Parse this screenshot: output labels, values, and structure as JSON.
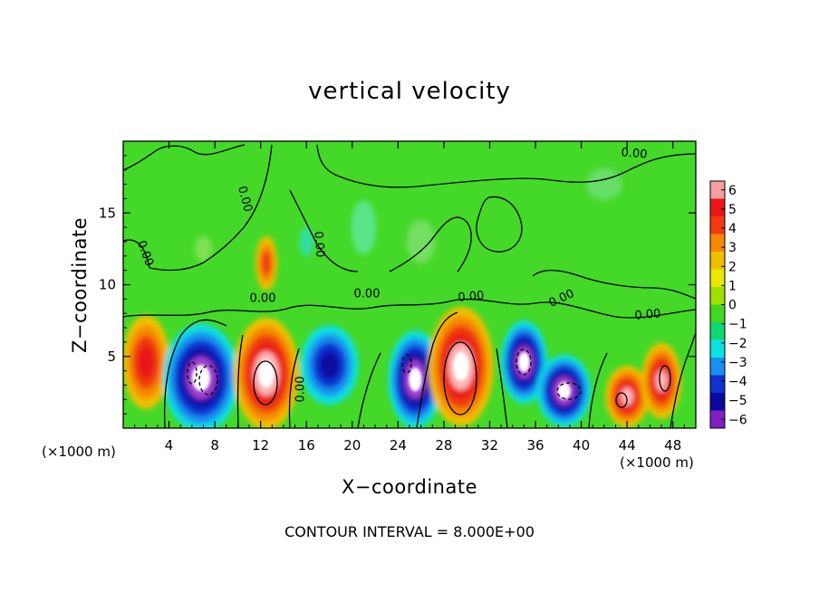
{
  "chart_data": {
    "type": "heatmap",
    "title": "vertical velocity",
    "xlabel": "X−coordinate",
    "ylabel": "Z−coordinate",
    "x_units_left": "(×1000 m)",
    "x_units_right": "(×1000 m)",
    "footer": "CONTOUR INTERVAL = 8.000E+00",
    "xlim": [
      0,
      50
    ],
    "ylim": [
      0,
      20
    ],
    "x_ticks": [
      "4",
      "8",
      "12",
      "16",
      "20",
      "24",
      "28",
      "32",
      "36",
      "40",
      "44",
      "48"
    ],
    "x_tick_values": [
      4,
      8,
      12,
      16,
      20,
      24,
      28,
      32,
      36,
      40,
      44,
      48
    ],
    "y_ticks": [
      "5",
      "10",
      "15"
    ],
    "y_tick_values": [
      5,
      10,
      15
    ],
    "contour_labels": [
      "0.00",
      "0.00",
      "0.00",
      "0.00",
      "0.00",
      "0.00",
      "0.00",
      "0.00",
      "0.00",
      "0.00"
    ],
    "colorbar": {
      "levels": [
        "6",
        "5",
        "4",
        "3",
        "2",
        "1",
        "0",
        "−1",
        "−2",
        "−3",
        "−4",
        "−5",
        "−6"
      ],
      "colors": [
        "#f5a0a0",
        "#e81818",
        "#f03a10",
        "#f58a00",
        "#f0c000",
        "#e8e800",
        "#a0e000",
        "#40d820",
        "#10d870",
        "#10e0e0",
        "#1890f0",
        "#1030d0",
        "#0a0aa0",
        "#8020c0"
      ]
    },
    "features": [
      {
        "kind": "updraft",
        "x": 2,
        "z": 4.6,
        "peak": 4
      },
      {
        "kind": "downdraft",
        "x": 6.8,
        "z": 3.5,
        "peak": -7
      },
      {
        "kind": "updraft",
        "x": 12.5,
        "z": 3.8,
        "peak": 7
      },
      {
        "kind": "downdraft",
        "x": 18,
        "z": 4.4,
        "peak": -4
      },
      {
        "kind": "downdraft",
        "x": 25.5,
        "z": 3.4,
        "peak": -6
      },
      {
        "kind": "updraft",
        "x": 29.5,
        "z": 4.3,
        "peak": 8
      },
      {
        "kind": "downdraft",
        "x": 35,
        "z": 4.6,
        "peak": -6
      },
      {
        "kind": "downdraft",
        "x": 38.5,
        "z": 2.6,
        "peak": -6
      },
      {
        "kind": "updraft",
        "x": 44,
        "z": 2.2,
        "peak": 5
      },
      {
        "kind": "updraft",
        "x": 47,
        "z": 3.3,
        "peak": 5
      },
      {
        "kind": "updraft",
        "x": 12.5,
        "z": 11.5,
        "peak": 3
      }
    ]
  }
}
